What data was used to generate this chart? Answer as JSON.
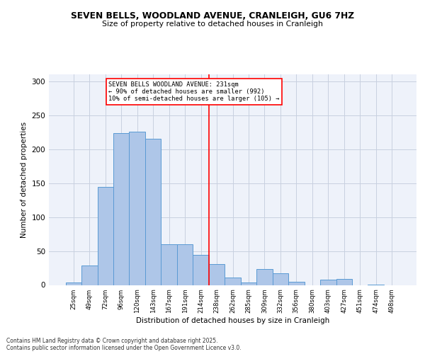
{
  "title": "SEVEN BELLS, WOODLAND AVENUE, CRANLEIGH, GU6 7HZ",
  "subtitle": "Size of property relative to detached houses in Cranleigh",
  "xlabel": "Distribution of detached houses by size in Cranleigh",
  "ylabel": "Number of detached properties",
  "categories": [
    "25sqm",
    "49sqm",
    "72sqm",
    "96sqm",
    "120sqm",
    "143sqm",
    "167sqm",
    "191sqm",
    "214sqm",
    "238sqm",
    "262sqm",
    "285sqm",
    "309sqm",
    "332sqm",
    "356sqm",
    "380sqm",
    "403sqm",
    "427sqm",
    "451sqm",
    "474sqm",
    "498sqm"
  ],
  "values": [
    4,
    29,
    144,
    224,
    226,
    215,
    60,
    60,
    44,
    31,
    11,
    4,
    23,
    17,
    5,
    0,
    8,
    9,
    0,
    1,
    0
  ],
  "bar_color": "#aec6e8",
  "bar_edge_color": "#5a9ad4",
  "vline_x_index": 8,
  "vline_color": "red",
  "annotation_text": "SEVEN BELLS WOODLAND AVENUE: 231sqm\n← 90% of detached houses are smaller (992)\n10% of semi-detached houses are larger (105) →",
  "annotation_box_color": "white",
  "annotation_box_edge": "red",
  "grid_color": "#c8d0e0",
  "background_color": "#eef2fa",
  "footer_text": "Contains HM Land Registry data © Crown copyright and database right 2025.\nContains public sector information licensed under the Open Government Licence v3.0.",
  "ylim": [
    0,
    310
  ],
  "yticks": [
    0,
    50,
    100,
    150,
    200,
    250,
    300
  ]
}
